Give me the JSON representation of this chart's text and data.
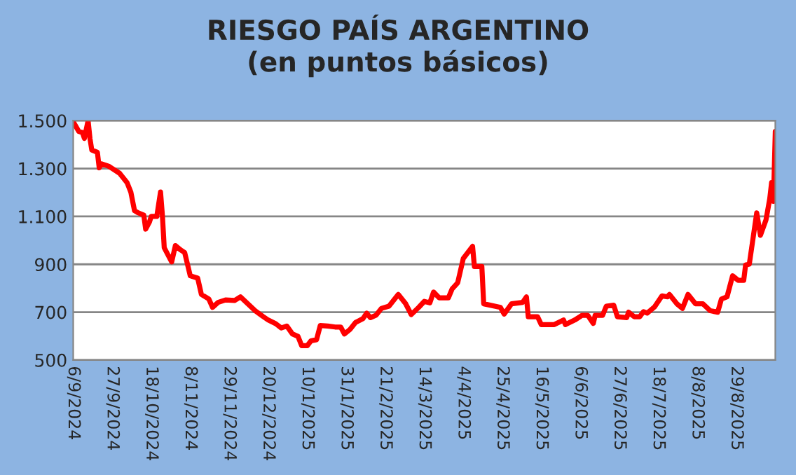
{
  "chart_data": {
    "type": "line",
    "title": "RIESGO PAÍS ARGENTINO\n(en puntos básicos)",
    "x": [
      "2024-09-06",
      "2024-09-09",
      "2024-09-11",
      "2024-09-12",
      "2024-09-14",
      "2024-09-15",
      "2024-09-16",
      "2024-09-19",
      "2024-09-20",
      "2024-09-21",
      "2024-09-25",
      "2024-09-27",
      "2024-10-01",
      "2024-10-05",
      "2024-10-07",
      "2024-10-09",
      "2024-10-11",
      "2024-10-14",
      "2024-10-15",
      "2024-10-17",
      "2024-10-18",
      "2024-10-21",
      "2024-10-23",
      "2024-10-24",
      "2024-10-25",
      "2024-10-29",
      "2024-10-31",
      "2024-11-03",
      "2024-11-05",
      "2024-11-08",
      "2024-11-12",
      "2024-11-14",
      "2024-11-18",
      "2024-11-20",
      "2024-11-23",
      "2024-11-27",
      "2024-12-02",
      "2024-12-05",
      "2024-12-09",
      "2024-12-13",
      "2024-12-17",
      "2024-12-20",
      "2024-12-24",
      "2024-12-27",
      "2024-12-30",
      "2025-01-02",
      "2025-01-05",
      "2025-01-07",
      "2025-01-10",
      "2025-01-12",
      "2025-01-15",
      "2025-01-17",
      "2025-01-21",
      "2025-01-25",
      "2025-01-28",
      "2025-01-30",
      "2025-02-02",
      "2025-02-05",
      "2025-02-09",
      "2025-02-11",
      "2025-02-13",
      "2025-02-16",
      "2025-02-19",
      "2025-02-23",
      "2025-02-28",
      "2025-03-04",
      "2025-03-07",
      "2025-03-11",
      "2025-03-14",
      "2025-03-17",
      "2025-03-19",
      "2025-03-22",
      "2025-03-27",
      "2025-03-29",
      "2025-04-01",
      "2025-04-04",
      "2025-04-09",
      "2025-04-10",
      "2025-04-14",
      "2025-04-15",
      "2025-04-24",
      "2025-04-26",
      "2025-04-30",
      "2025-05-06",
      "2025-05-08",
      "2025-05-09",
      "2025-05-14",
      "2025-05-16",
      "2025-05-23",
      "2025-05-28",
      "2025-05-29",
      "2025-06-03",
      "2025-06-07",
      "2025-06-10",
      "2025-06-13",
      "2025-06-14",
      "2025-06-18",
      "2025-06-20",
      "2025-06-24",
      "2025-06-26",
      "2025-07-01",
      "2025-07-02",
      "2025-07-05",
      "2025-07-08",
      "2025-07-10",
      "2025-07-12",
      "2025-07-16",
      "2025-07-20",
      "2025-07-23",
      "2025-07-24",
      "2025-07-28",
      "2025-07-31",
      "2025-08-03",
      "2025-08-07",
      "2025-08-11",
      "2025-08-15",
      "2025-08-19",
      "2025-08-21",
      "2025-08-24",
      "2025-08-27",
      "2025-08-30",
      "2025-09-02",
      "2025-09-03",
      "2025-09-05",
      "2025-09-09",
      "2025-09-11",
      "2025-09-14",
      "2025-09-16",
      "2025-09-17",
      "2025-09-18",
      "2025-09-19"
    ],
    "series": [
      {
        "color": "#ff0000",
        "values": [
          1495,
          1455,
          1450,
          1426,
          1500,
          1426,
          1377,
          1368,
          1303,
          1320,
          1310,
          1300,
          1280,
          1241,
          1202,
          1124,
          1115,
          1105,
          1047,
          1076,
          1100,
          1100,
          1202,
          1105,
          969,
          910,
          978,
          959,
          949,
          852,
          842,
          774,
          755,
          720,
          741,
          751,
          749,
          764,
          735,
          706,
          683,
          667,
          652,
          634,
          642,
          609,
          599,
          560,
          560,
          580,
          585,
          644,
          642,
          638,
          638,
          609,
          628,
          657,
          673,
          696,
          677,
          687,
          716,
          725,
          774,
          735,
          690,
          720,
          745,
          739,
          784,
          760,
          760,
          797,
          823,
          924,
          975,
          891,
          891,
          735,
          720,
          692,
          735,
          741,
          764,
          681,
          681,
          648,
          648,
          667,
          648,
          667,
          687,
          687,
          653,
          687,
          687,
          725,
          729,
          681,
          677,
          700,
          681,
          681,
          702,
          696,
          722,
          768,
          764,
          774,
          735,
          716,
          774,
          735,
          735,
          706,
          700,
          755,
          764,
          852,
          833,
          833,
          897,
          901,
          1115,
          1021,
          1086,
          1173,
          1241,
          1163,
          1455
        ]
      }
    ],
    "xlim": [
      "2024-09-06",
      "2025-09-19"
    ],
    "xticks": [
      {
        "value": "2024-09-06",
        "label": "6/9/2024"
      },
      {
        "value": "2024-09-27",
        "label": "27/9/2024"
      },
      {
        "value": "2024-10-18",
        "label": "18/10/2024"
      },
      {
        "value": "2024-11-08",
        "label": "8/11/2024"
      },
      {
        "value": "2024-11-29",
        "label": "29/11/2024"
      },
      {
        "value": "2024-12-20",
        "label": "20/12/2024"
      },
      {
        "value": "2025-01-10",
        "label": "10/1/2025"
      },
      {
        "value": "2025-01-31",
        "label": "31/1/2025"
      },
      {
        "value": "2025-02-21",
        "label": "21/2/2025"
      },
      {
        "value": "2025-03-14",
        "label": "14/3/2025"
      },
      {
        "value": "2025-04-04",
        "label": "4/4/2025"
      },
      {
        "value": "2025-04-25",
        "label": "25/4/2025"
      },
      {
        "value": "2025-05-16",
        "label": "16/5/2025"
      },
      {
        "value": "2025-06-06",
        "label": "6/6/2025"
      },
      {
        "value": "2025-06-27",
        "label": "27/6/2025"
      },
      {
        "value": "2025-07-18",
        "label": "18/7/2025"
      },
      {
        "value": "2025-08-08",
        "label": "8/8/2025"
      },
      {
        "value": "2025-08-29",
        "label": "29/8/2025"
      }
    ],
    "ylim": [
      500,
      1500
    ],
    "yticks": [
      {
        "value": 500,
        "label": "500"
      },
      {
        "value": 700,
        "label": "700"
      },
      {
        "value": 900,
        "label": "900"
      },
      {
        "value": 1100,
        "label": "1.100"
      },
      {
        "value": 1300,
        "label": "1.300"
      },
      {
        "value": 1500,
        "label": "1.500"
      }
    ],
    "grid": "y",
    "legend": false,
    "marker": "none",
    "line_style": "solid"
  }
}
